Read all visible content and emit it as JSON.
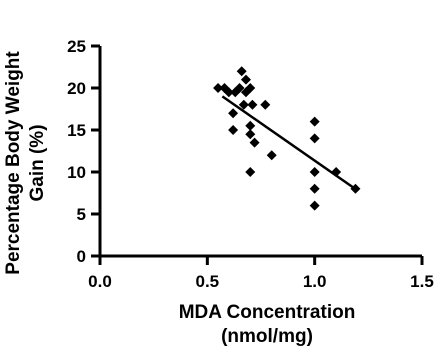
{
  "chart_data": {
    "type": "scatter",
    "title": "",
    "xlabel_lines": [
      "MDA Concentration",
      "(nmol/mg)"
    ],
    "ylabel_lines": [
      "Percentage Body Weight",
      "Gain (%)"
    ],
    "xlim": [
      0,
      1.5
    ],
    "ylim": [
      0,
      25
    ],
    "x_ticks": [
      0,
      0.5,
      1,
      1.5
    ],
    "x_tick_labels": [
      "0.0",
      "0.5",
      "1.0",
      "1.5"
    ],
    "y_ticks": [
      0,
      5,
      10,
      15,
      20,
      25
    ],
    "y_tick_labels": [
      "0",
      "5",
      "10",
      "15",
      "20",
      "25"
    ],
    "grid": false,
    "marker": "diamond",
    "points": [
      {
        "x": 0.55,
        "y": 20
      },
      {
        "x": 0.58,
        "y": 20
      },
      {
        "x": 0.6,
        "y": 19.5
      },
      {
        "x": 0.62,
        "y": 15
      },
      {
        "x": 0.62,
        "y": 17
      },
      {
        "x": 0.63,
        "y": 19.5
      },
      {
        "x": 0.65,
        "y": 20
      },
      {
        "x": 0.66,
        "y": 22
      },
      {
        "x": 0.67,
        "y": 18
      },
      {
        "x": 0.68,
        "y": 21
      },
      {
        "x": 0.68,
        "y": 19.5
      },
      {
        "x": 0.7,
        "y": 20
      },
      {
        "x": 0.7,
        "y": 15.5
      },
      {
        "x": 0.7,
        "y": 14.5
      },
      {
        "x": 0.7,
        "y": 10
      },
      {
        "x": 0.71,
        "y": 18
      },
      {
        "x": 0.72,
        "y": 13.5
      },
      {
        "x": 0.77,
        "y": 18
      },
      {
        "x": 0.8,
        "y": 12
      },
      {
        "x": 1.0,
        "y": 16
      },
      {
        "x": 1.0,
        "y": 14
      },
      {
        "x": 1.0,
        "y": 10
      },
      {
        "x": 1.0,
        "y": 8
      },
      {
        "x": 1.0,
        "y": 6
      },
      {
        "x": 1.1,
        "y": 10
      },
      {
        "x": 1.19,
        "y": 8
      }
    ],
    "trendline": {
      "x": [
        0.57,
        1.2
      ],
      "y": [
        19.0,
        7.8
      ]
    }
  }
}
